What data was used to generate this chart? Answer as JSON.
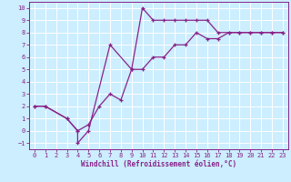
{
  "xlabel": "Windchill (Refroidissement éolien,°C)",
  "bg_color": "#cceeff",
  "line_color": "#882288",
  "marker": "+",
  "xlim": [
    -0.5,
    23.5
  ],
  "ylim": [
    -1.5,
    10.5
  ],
  "xticks": [
    0,
    1,
    2,
    3,
    4,
    5,
    6,
    7,
    8,
    9,
    10,
    11,
    12,
    13,
    14,
    15,
    16,
    17,
    18,
    19,
    20,
    21,
    22,
    23
  ],
  "yticks": [
    -1,
    0,
    1,
    2,
    3,
    4,
    5,
    6,
    7,
    8,
    9,
    10
  ],
  "line1_x": [
    0,
    1,
    3,
    4,
    4,
    5,
    7,
    9,
    10,
    11,
    12,
    13,
    14,
    15,
    16,
    17,
    18,
    19,
    20,
    21,
    22,
    23
  ],
  "line1_y": [
    2,
    2,
    1,
    0,
    -1,
    0,
    7,
    5,
    10,
    9,
    9,
    9,
    9,
    9,
    9,
    8,
    8,
    8,
    8,
    8,
    8,
    8
  ],
  "line2_x": [
    0,
    1,
    3,
    4,
    5,
    6,
    7,
    8,
    9,
    10,
    11,
    12,
    13,
    14,
    15,
    16,
    17,
    18,
    19,
    20,
    21,
    22,
    23
  ],
  "line2_y": [
    2,
    2,
    1,
    0,
    0.5,
    2,
    3,
    2.5,
    5,
    5,
    6,
    6,
    7,
    7,
    8,
    7.5,
    7.5,
    8,
    8,
    8,
    8,
    8,
    8
  ],
  "xlabel_fontsize": 5.5,
  "tick_fontsize": 5,
  "grid_color": "#ffffff",
  "grid_linewidth": 0.7,
  "line_linewidth": 0.9,
  "markersize": 3,
  "markeredgewidth": 0.9
}
